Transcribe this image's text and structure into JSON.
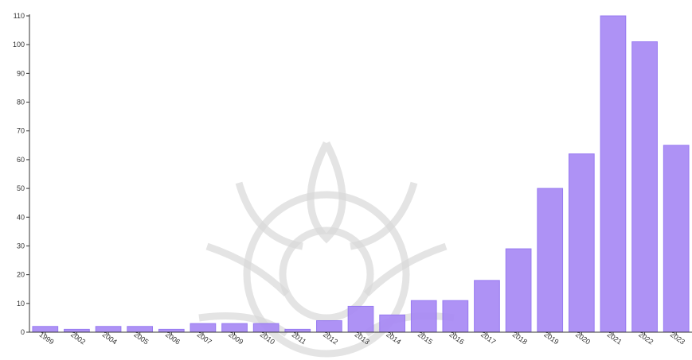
{
  "chart_data": {
    "type": "bar",
    "title": "",
    "xlabel": "",
    "ylabel": "",
    "categories": [
      "1999",
      "2002",
      "2004",
      "2005",
      "2006",
      "2007",
      "2009",
      "2010",
      "2011",
      "2012",
      "2013",
      "2014",
      "2015",
      "2016",
      "2017",
      "2018",
      "2019",
      "2020",
      "2021",
      "2022",
      "2023"
    ],
    "values": [
      2,
      1,
      2,
      2,
      1,
      3,
      3,
      3,
      1,
      4,
      9,
      6,
      11,
      11,
      18,
      29,
      50,
      62,
      110,
      101,
      65
    ],
    "ylim": [
      0,
      110
    ],
    "yticks": [
      0,
      10,
      20,
      30,
      40,
      50,
      60,
      70,
      80,
      90,
      100,
      110
    ],
    "grid": false,
    "bar_color": "#a889f5",
    "bar_edge_color": "#8f6ff0"
  }
}
